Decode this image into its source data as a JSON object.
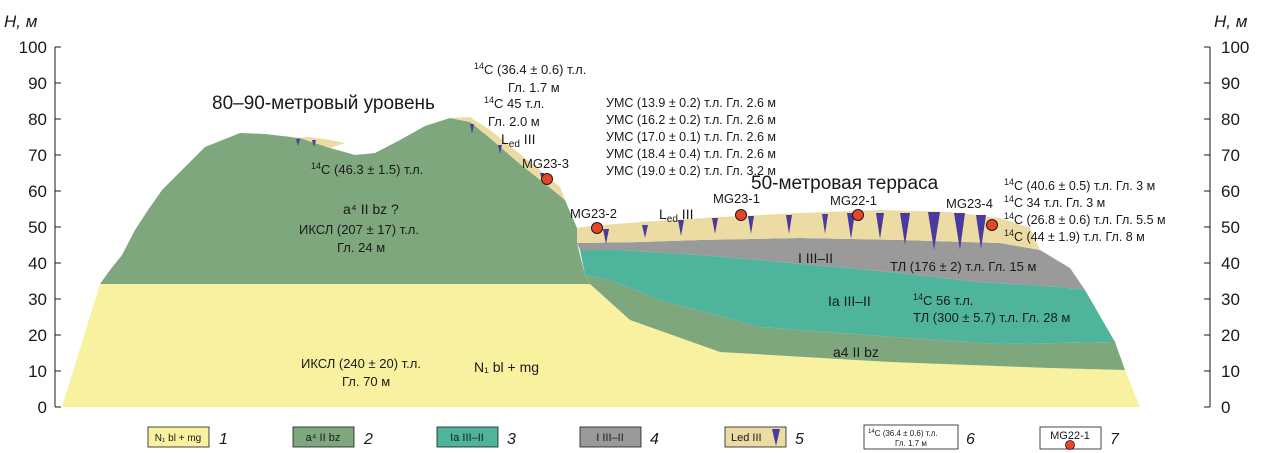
{
  "axes": {
    "y_label_left": "Н, м",
    "y_label_right": "Н, м",
    "ylim": [
      0,
      100
    ],
    "ticks": [
      "0",
      "10",
      "20",
      "30",
      "40",
      "50",
      "60",
      "70",
      "80",
      "90",
      "100"
    ]
  },
  "titles": {
    "level_80_90": "80–90-метровый уровень",
    "terrace_50": "50-метровая терраса"
  },
  "units": {
    "N1": "N₁ bl + mg",
    "a4_upper": "a⁴ II bz ?",
    "a4_lower": "a4 II bz",
    "ia": "Ia III–II",
    "i_top": "I III–II",
    "led_mid": "L",
    "led_mid_sub": "ed",
    "led_mid_tail": " III",
    "led_top": "L",
    "led_top_sub": "ed",
    "led_top_tail": " III"
  },
  "dates": {
    "c14_top_1": "(36.4 ± 0.6) т.л.",
    "c14_top_2": "Гл. 1.7 м",
    "c14_45_1": "45 т.л.",
    "c14_45_2": "Гл. 2.0 м",
    "c14_463": "(46.3 ± 1.5) т.л.",
    "iksl_207_1": "ИКСЛ (207 ± 17) т.л.",
    "iksl_207_2": "Гл. 24 м",
    "iksl_240_1": "ИКСЛ (240 ± 20) т.л.",
    "iksl_240_2": "Гл. 70 м",
    "ums": [
      "УМС (13.9 ± 0.2) т.л. Гл. 2.6 м",
      "УМС (16.2 ± 0.2) т.л. Гл. 2.6 м",
      "УМС (17.0 ± 0.1) т.л. Гл. 2.6 м",
      "УМС (18.4 ± 0.4) т.л. Гл. 2.6 м",
      "УМС (19.0 ± 0.2) т.л. Гл. 3.2 м"
    ],
    "right_c14": [
      "(40.6 ± 0.5) т.л. Гл. 3 м",
      "34 т.л. Гл. 3 м",
      "(26.8 ± 0.6) т.л. Гл. 5.5 м",
      "(44 ± 1.9) т.л. Гл. 8 м"
    ],
    "tl_176": "ТЛ (176 ± 2) т.л. Гл. 15 м",
    "c14_56": "56 т.л.",
    "tl_300": "ТЛ (300 ± 5.7) т.л. Гл. 28 м",
    "c14_pre": "14",
    "c14_c": "C "
  },
  "samples": [
    {
      "label": "MG23-3"
    },
    {
      "label": "MG23-2"
    },
    {
      "label": "MG23-1"
    },
    {
      "label": "MG22-1"
    },
    {
      "label": "MG23-4"
    }
  ],
  "legend": [
    {
      "box": "N₁ bl + mg",
      "num": "1",
      "color": "#f7f1a0"
    },
    {
      "box": "a⁴ II bz",
      "num": "2",
      "color": "#7fa77d"
    },
    {
      "box": "Ia III–II",
      "num": "3",
      "color": "#4eb59c"
    },
    {
      "box": "I III–II",
      "num": "4",
      "color": "#9a9a9a"
    },
    {
      "box": "Led III",
      "num": "5",
      "color": "#ecdca4"
    },
    {
      "box": "(36.4 ± 0.6) т.л.",
      "box2": "Гл. 1.7 м",
      "num": "6",
      "color": "#ffffff"
    },
    {
      "box": "MG22-1",
      "num": "7",
      "color": "#ffffff"
    }
  ],
  "colors": {
    "n1": "#f7f1a0",
    "a4": "#7fa77d",
    "ia": "#4eb59c",
    "i": "#9a9a9a",
    "led": "#ecdca4",
    "wedge": "#4a3aa0",
    "sample": "#e8442a"
  }
}
